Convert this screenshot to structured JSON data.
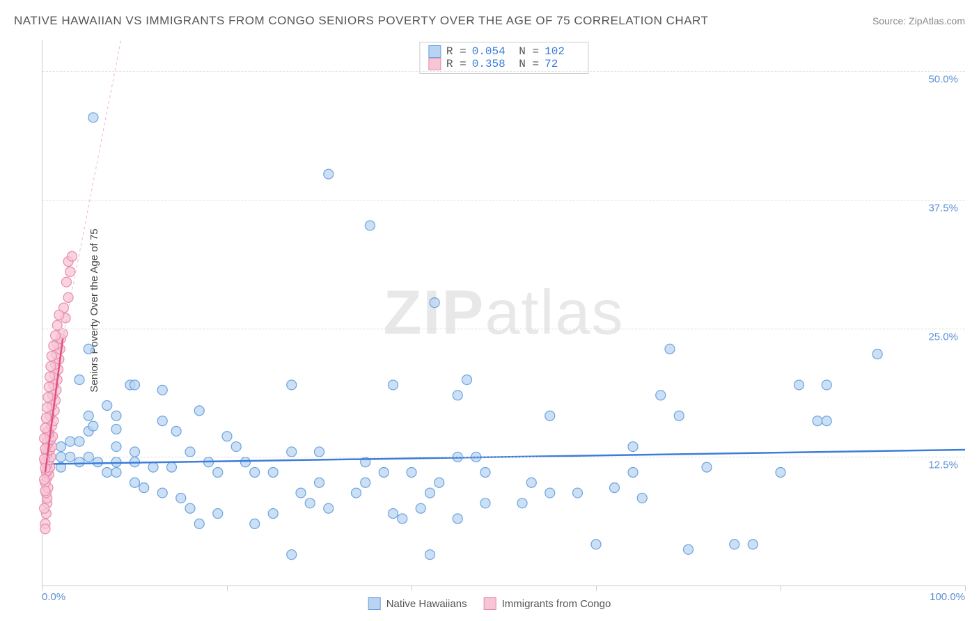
{
  "title": "NATIVE HAWAIIAN VS IMMIGRANTS FROM CONGO SENIORS POVERTY OVER THE AGE OF 75 CORRELATION CHART",
  "source": "Source: ZipAtlas.com",
  "y_axis_label": "Seniors Poverty Over the Age of 75",
  "watermark_bold": "ZIP",
  "watermark_light": "atlas",
  "x_min_label": "0.0%",
  "x_max_label": "100.0%",
  "chart": {
    "type": "scatter",
    "xlim": [
      0,
      100
    ],
    "ylim": [
      0,
      53
    ],
    "y_ticks": [
      12.5,
      25.0,
      37.5,
      50.0
    ],
    "y_tick_labels": [
      "12.5%",
      "25.0%",
      "37.5%",
      "50.0%"
    ],
    "x_ticks": [
      0,
      20,
      40,
      60,
      80,
      100
    ],
    "background_color": "#ffffff",
    "grid_color": "#dddddd",
    "marker_radius": 7,
    "marker_stroke_width": 1.2,
    "series": [
      {
        "name": "Native Hawaiians",
        "color_fill": "#b9d4f2",
        "color_stroke": "#6ba3e0",
        "R": "0.054",
        "N": "102",
        "trend": {
          "x1": 0,
          "y1": 11.8,
          "x2": 100,
          "y2": 13.2,
          "color": "#3b7dd8",
          "width": 2.5,
          "dash": "none"
        },
        "points": [
          [
            5.5,
            45.5
          ],
          [
            31,
            40
          ],
          [
            35.5,
            35
          ],
          [
            42.5,
            27.5
          ],
          [
            5,
            23
          ],
          [
            4,
            20
          ],
          [
            9.5,
            19.5
          ],
          [
            10,
            19.5
          ],
          [
            13,
            19
          ],
          [
            17,
            17
          ],
          [
            7,
            17.5
          ],
          [
            5,
            16.5
          ],
          [
            8,
            16.5
          ],
          [
            13,
            16
          ],
          [
            14.5,
            15
          ],
          [
            5,
            15
          ],
          [
            5.5,
            15.5
          ],
          [
            8,
            15.2
          ],
          [
            68,
            23
          ],
          [
            90.5,
            22.5
          ],
          [
            69,
            16.5
          ],
          [
            84,
            16
          ],
          [
            85,
            16
          ],
          [
            27,
            19.5
          ],
          [
            38,
            19.5
          ],
          [
            45,
            18.5
          ],
          [
            46,
            20
          ],
          [
            55,
            16.5
          ],
          [
            64,
            13.5
          ],
          [
            45,
            12.5
          ],
          [
            47,
            12.5
          ],
          [
            35,
            12
          ],
          [
            30,
            13
          ],
          [
            27,
            13
          ],
          [
            25,
            11
          ],
          [
            23,
            11
          ],
          [
            20,
            14.5
          ],
          [
            21,
            13.5
          ],
          [
            22,
            12
          ],
          [
            19,
            11
          ],
          [
            18,
            12
          ],
          [
            16,
            13
          ],
          [
            14,
            11.5
          ],
          [
            12,
            11.5
          ],
          [
            10,
            13
          ],
          [
            10,
            12
          ],
          [
            8,
            12
          ],
          [
            8,
            13.5
          ],
          [
            6,
            12
          ],
          [
            5,
            12.5
          ],
          [
            4,
            12
          ],
          [
            3,
            12.5
          ],
          [
            2,
            12.5
          ],
          [
            2,
            11.5
          ],
          [
            2,
            13.5
          ],
          [
            3,
            14
          ],
          [
            4,
            14
          ],
          [
            7,
            11
          ],
          [
            8,
            11
          ],
          [
            10,
            10
          ],
          [
            11,
            9.5
          ],
          [
            13,
            9
          ],
          [
            15,
            8.5
          ],
          [
            16,
            7.5
          ],
          [
            17,
            6
          ],
          [
            19,
            7
          ],
          [
            23,
            6
          ],
          [
            25,
            7
          ],
          [
            28,
            9
          ],
          [
            29,
            8
          ],
          [
            30,
            10
          ],
          [
            31,
            7.5
          ],
          [
            34,
            9
          ],
          [
            35,
            10
          ],
          [
            37,
            11
          ],
          [
            38,
            7
          ],
          [
            39,
            6.5
          ],
          [
            40,
            11
          ],
          [
            41,
            7.5
          ],
          [
            42,
            9
          ],
          [
            43,
            10
          ],
          [
            45,
            6.5
          ],
          [
            48,
            8
          ],
          [
            42,
            3
          ],
          [
            27,
            3
          ],
          [
            48,
            11
          ],
          [
            52,
            8
          ],
          [
            53,
            10
          ],
          [
            55,
            9
          ],
          [
            58,
            9
          ],
          [
            60,
            4
          ],
          [
            62,
            9.5
          ],
          [
            64,
            11
          ],
          [
            65,
            8.5
          ],
          [
            67,
            18.5
          ],
          [
            70,
            3.5
          ],
          [
            72,
            11.5
          ],
          [
            75,
            4
          ],
          [
            77,
            4
          ],
          [
            80,
            11
          ],
          [
            82,
            19.5
          ],
          [
            85,
            19.5
          ]
        ]
      },
      {
        "name": "Immigrants from Congo",
        "color_fill": "#f7c6d4",
        "color_stroke": "#e78bb0",
        "R": "0.358",
        "N": "72",
        "trend": {
          "x1": 0.3,
          "y1": 11,
          "x2": 2.2,
          "y2": 24,
          "color": "#e0517e",
          "width": 2.5,
          "dash": "none"
        },
        "trend_ext": {
          "x1": 2.2,
          "y1": 24,
          "x2": 8.5,
          "y2": 53,
          "color": "#f2b3c6",
          "width": 1,
          "dash": "4,4"
        },
        "points": [
          [
            0.3,
            6
          ],
          [
            0.4,
            7
          ],
          [
            0.5,
            8
          ],
          [
            0.5,
            8.5
          ],
          [
            0.4,
            9
          ],
          [
            0.6,
            9.5
          ],
          [
            0.3,
            10
          ],
          [
            0.5,
            10.5
          ],
          [
            0.7,
            10.8
          ],
          [
            0.4,
            11
          ],
          [
            0.6,
            11.2
          ],
          [
            0.8,
            11.5
          ],
          [
            0.5,
            11.8
          ],
          [
            0.3,
            12
          ],
          [
            0.7,
            12.2
          ],
          [
            0.9,
            12.5
          ],
          [
            0.5,
            12.8
          ],
          [
            0.4,
            13
          ],
          [
            0.8,
            13.2
          ],
          [
            1.0,
            13.5
          ],
          [
            0.6,
            13.8
          ],
          [
            0.5,
            14
          ],
          [
            0.9,
            14.2
          ],
          [
            1.1,
            14.5
          ],
          [
            0.7,
            14.8
          ],
          [
            0.6,
            15
          ],
          [
            1.0,
            15.5
          ],
          [
            1.2,
            16
          ],
          [
            0.8,
            16.5
          ],
          [
            1.3,
            17
          ],
          [
            1.0,
            17.5
          ],
          [
            1.4,
            18
          ],
          [
            1.1,
            18.5
          ],
          [
            1.5,
            19
          ],
          [
            1.2,
            19.5
          ],
          [
            1.6,
            20
          ],
          [
            1.3,
            20.5
          ],
          [
            1.7,
            21
          ],
          [
            1.4,
            21.5
          ],
          [
            1.8,
            22
          ],
          [
            1.5,
            22.5
          ],
          [
            1.9,
            23
          ],
          [
            1.6,
            23.5
          ],
          [
            2.0,
            24
          ],
          [
            2.2,
            24.5
          ],
          [
            2.5,
            26
          ],
          [
            2.3,
            27
          ],
          [
            2.8,
            28
          ],
          [
            2.6,
            29.5
          ],
          [
            3.0,
            30.5
          ],
          [
            2.8,
            31.5
          ],
          [
            3.2,
            32
          ],
          [
            0.3,
            5.5
          ],
          [
            0.2,
            7.5
          ],
          [
            0.3,
            9.2
          ],
          [
            0.2,
            10.3
          ],
          [
            0.3,
            11.4
          ],
          [
            0.2,
            12.3
          ],
          [
            0.3,
            13.3
          ],
          [
            0.2,
            14.3
          ],
          [
            0.3,
            15.3
          ],
          [
            0.4,
            16.3
          ],
          [
            0.5,
            17.3
          ],
          [
            0.6,
            18.3
          ],
          [
            0.7,
            19.3
          ],
          [
            0.8,
            20.3
          ],
          [
            0.9,
            21.3
          ],
          [
            1.0,
            22.3
          ],
          [
            1.2,
            23.3
          ],
          [
            1.4,
            24.3
          ],
          [
            1.6,
            25.3
          ],
          [
            1.8,
            26.3
          ]
        ]
      }
    ]
  },
  "legend_bottom": [
    {
      "label": "Native Hawaiians",
      "fill": "#b9d4f2",
      "stroke": "#6ba3e0"
    },
    {
      "label": "Immigrants from Congo",
      "fill": "#f7c6d4",
      "stroke": "#e78bb0"
    }
  ]
}
